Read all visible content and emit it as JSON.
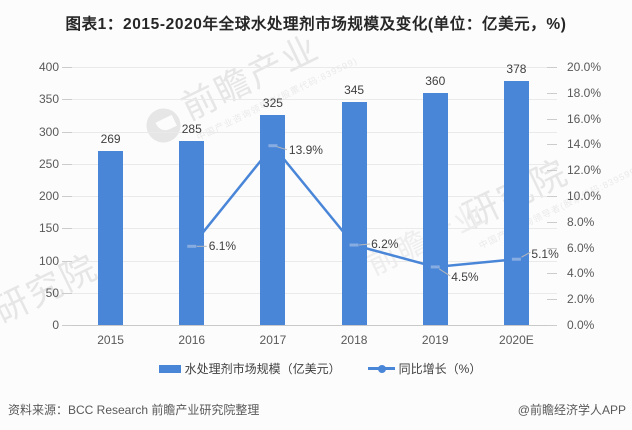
{
  "title": "图表1：2015-2020年全球水处理剂市场规模及变化(单位：亿美元，%)",
  "chart_data": {
    "type": "bar",
    "categories": [
      "2015",
      "2016",
      "2017",
      "2018",
      "2019",
      "2020E"
    ],
    "series": [
      {
        "name": "水处理剂市场规模（亿美元）",
        "type": "bar",
        "axis": "left",
        "values": [
          269,
          285,
          325,
          345,
          360,
          378
        ]
      },
      {
        "name": "同比增长（%）",
        "type": "line",
        "axis": "right",
        "values": [
          null,
          6.1,
          13.9,
          6.2,
          4.5,
          5.1
        ],
        "point_labels": [
          null,
          "6.1%",
          "13.9%",
          "6.2%",
          "4.5%",
          "5.1%"
        ]
      }
    ],
    "title": "图表1：2015-2020年全球水处理剂市场规模及变化(单位：亿美元，%)",
    "xlabel": "",
    "ylabel": "",
    "left_axis": {
      "min": 0,
      "max": 400,
      "step": 50,
      "ticks": [
        "400",
        "350",
        "300",
        "250",
        "200",
        "150",
        "100",
        "50",
        "0"
      ]
    },
    "right_axis": {
      "min": 0,
      "max": 20,
      "step": 2,
      "ticks": [
        "20.0%",
        "18.0%",
        "16.0%",
        "14.0%",
        "12.0%",
        "10.0%",
        "8.0%",
        "6.0%",
        "4.0%",
        "2.0%",
        "0.0%"
      ]
    },
    "grid": true,
    "legend_position": "bottom"
  },
  "legend": {
    "bar_label": "水处理剂市场规模（亿美元）",
    "line_label": "同比增长（%）"
  },
  "footer": {
    "source": "资料来源：BCC Research 前瞻产业研究院整理",
    "credit": "@前瞻经济学人APP"
  },
  "watermark": {
    "brand": "前瞻产业",
    "institute": "研究院",
    "institute2": "产业研究院",
    "sub": "中国产业咨询领导者(股票代码:839599)"
  },
  "colors": {
    "bar": "#4a86d8",
    "line": "#4a86d8",
    "marker": "#86ace2",
    "grid": "#eaeaea",
    "axis_text": "#595959",
    "data_label": "#404040",
    "background": "#fcfcfc"
  }
}
